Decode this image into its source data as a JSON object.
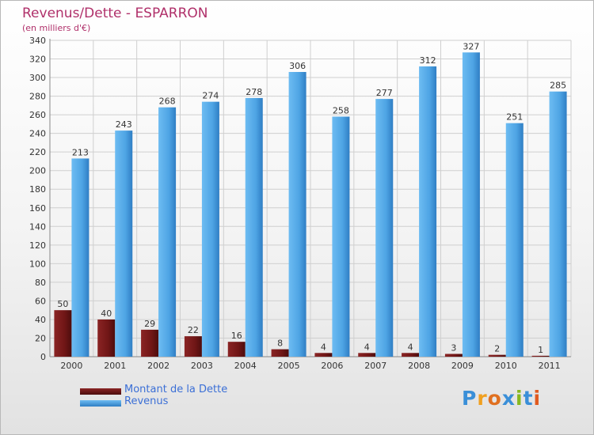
{
  "chart_data": {
    "type": "bar",
    "title": "Revenus/Dette - ESPARRON",
    "subtitle": "(en milliers d'€)",
    "categories": [
      "2000",
      "2001",
      "2002",
      "2003",
      "2004",
      "2005",
      "2006",
      "2007",
      "2008",
      "2009",
      "2010",
      "2011"
    ],
    "series": [
      {
        "name": "Montant de la Dette",
        "values": [
          50,
          40,
          29,
          22,
          16,
          8,
          4,
          4,
          4,
          3,
          2,
          1
        ],
        "color": "#7a1a1a"
      },
      {
        "name": "Revenus",
        "values": [
          213,
          243,
          268,
          274,
          278,
          306,
          258,
          277,
          312,
          327,
          251,
          285
        ],
        "color": "#5aaeea"
      }
    ],
    "ylim": [
      0,
      340
    ],
    "yticks": [
      0,
      20,
      40,
      60,
      80,
      100,
      120,
      140,
      160,
      180,
      200,
      220,
      240,
      260,
      280,
      300,
      320,
      340
    ],
    "grid": true,
    "legend": "bottom-left"
  },
  "logo": {
    "text": "Proxiti"
  },
  "colors": {
    "title": "#b0306a",
    "legend_text": "#3b6fd6"
  }
}
